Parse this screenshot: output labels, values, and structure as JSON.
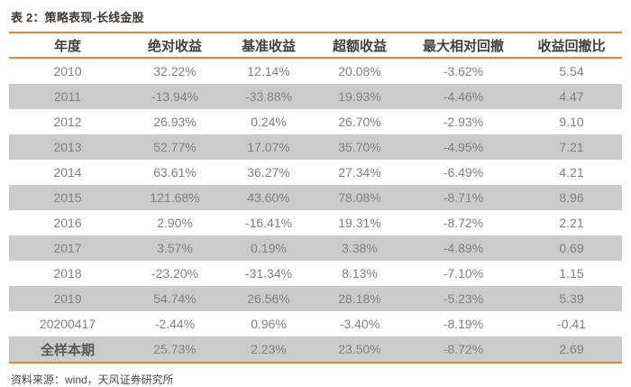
{
  "table": {
    "title": "表 2：策略表现-长线金股",
    "columns": [
      "年度",
      "绝对收益",
      "基准收益",
      "超额收益",
      "最大相对回撤",
      "收益回撤比"
    ],
    "rows": [
      {
        "cells": [
          "2010",
          "32.22%",
          "12.14%",
          "20.08%",
          "-3.62%",
          "5.54"
        ],
        "emphasis": false
      },
      {
        "cells": [
          "2011",
          "-13.94%",
          "-33.88%",
          "19.93%",
          "-4.46%",
          "4.47"
        ],
        "emphasis": false
      },
      {
        "cells": [
          "2012",
          "26.93%",
          "0.24%",
          "26.70%",
          "-2.93%",
          "9.10"
        ],
        "emphasis": false
      },
      {
        "cells": [
          "2013",
          "52.77%",
          "17.07%",
          "35.70%",
          "-4.95%",
          "7.21"
        ],
        "emphasis": false
      },
      {
        "cells": [
          "2014",
          "63.61%",
          "36.27%",
          "27.34%",
          "-6.49%",
          "4.21"
        ],
        "emphasis": false
      },
      {
        "cells": [
          "2015",
          "121.68%",
          "43.60%",
          "78.08%",
          "-8.71%",
          "8.96"
        ],
        "emphasis": false
      },
      {
        "cells": [
          "2016",
          "2.90%",
          "-16.41%",
          "19.31%",
          "-8.72%",
          "2.21"
        ],
        "emphasis": false
      },
      {
        "cells": [
          "2017",
          "3.57%",
          "0.19%",
          "3.38%",
          "-4.89%",
          "0.69"
        ],
        "emphasis": false
      },
      {
        "cells": [
          "2018",
          "-23.20%",
          "-31.34%",
          "8.13%",
          "-7.10%",
          "1.15"
        ],
        "emphasis": false
      },
      {
        "cells": [
          "2019",
          "54.74%",
          "26.56%",
          "28.18%",
          "-5.23%",
          "5.39"
        ],
        "emphasis": false
      },
      {
        "cells": [
          "20200417",
          "-2.44%",
          "0.96%",
          "-3.40%",
          "-8.19%",
          "-0.41"
        ],
        "emphasis": false
      },
      {
        "cells": [
          "全样本期",
          "25.73%",
          "2.23%",
          "23.50%",
          "-8.72%",
          "2.69"
        ],
        "emphasis": true
      }
    ],
    "source": "资料来源：wind，天风证券研究所"
  },
  "chart_data": {
    "type": "table",
    "title": "策略表现-长线金股",
    "categories": [
      "2010",
      "2011",
      "2012",
      "2013",
      "2014",
      "2015",
      "2016",
      "2017",
      "2018",
      "2019",
      "20200417",
      "全样本期"
    ],
    "series": [
      {
        "name": "绝对收益",
        "values": [
          "32.22%",
          "-13.94%",
          "26.93%",
          "52.77%",
          "63.61%",
          "121.68%",
          "2.90%",
          "3.57%",
          "-23.20%",
          "54.74%",
          "-2.44%",
          "25.73%"
        ]
      },
      {
        "name": "基准收益",
        "values": [
          "12.14%",
          "-33.88%",
          "0.24%",
          "17.07%",
          "36.27%",
          "43.60%",
          "-16.41%",
          "0.19%",
          "-31.34%",
          "26.56%",
          "0.96%",
          "2.23%"
        ]
      },
      {
        "name": "超额收益",
        "values": [
          "20.08%",
          "19.93%",
          "26.70%",
          "35.70%",
          "27.34%",
          "78.08%",
          "19.31%",
          "3.38%",
          "8.13%",
          "28.18%",
          "-3.40%",
          "23.50%"
        ]
      },
      {
        "name": "最大相对回撤",
        "values": [
          "-3.62%",
          "-4.46%",
          "-2.93%",
          "-4.95%",
          "-6.49%",
          "-8.71%",
          "-8.72%",
          "-4.89%",
          "-7.10%",
          "-5.23%",
          "-8.19%",
          "-8.72%"
        ]
      },
      {
        "name": "收益回撤比",
        "values": [
          "5.54",
          "4.47",
          "9.10",
          "7.21",
          "4.21",
          "8.96",
          "2.21",
          "0.69",
          "1.15",
          "5.39",
          "-0.41",
          "2.69"
        ]
      }
    ]
  },
  "colors": {
    "accent": "#EE8230",
    "stripe": "#CBCBCB",
    "row_text": "#808080",
    "header_text": "#404040"
  }
}
